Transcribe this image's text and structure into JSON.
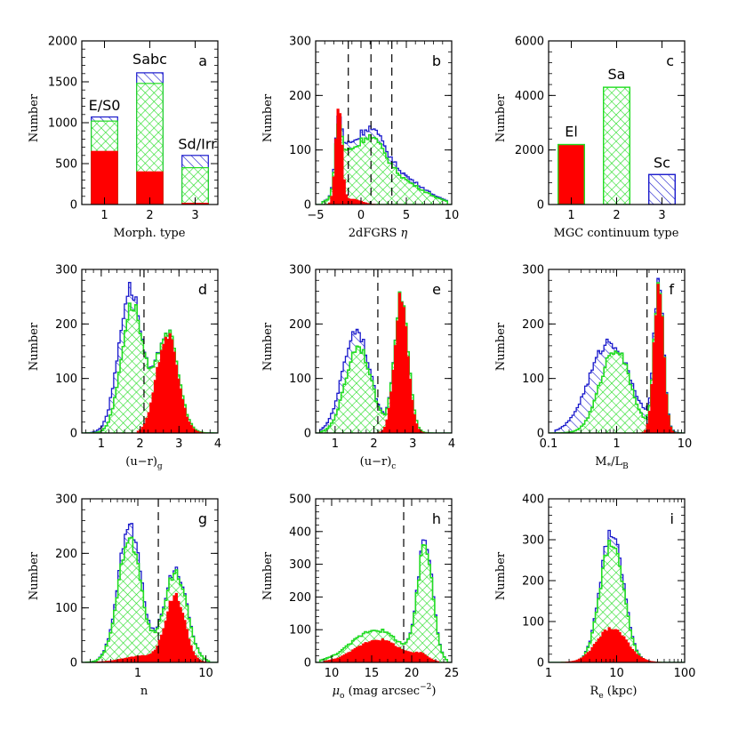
{
  "colors": {
    "red": "#ff0000",
    "green": "#22dd22",
    "blue": "#1a1acc",
    "black": "#000000"
  },
  "chart_data": [
    {
      "type": "bar",
      "letter": "a",
      "xlabel": "Morph. type",
      "ylabel": "Number",
      "xlim": [
        0.5,
        3.5
      ],
      "ylim": [
        0,
        2000
      ],
      "xscale": "linear",
      "xticks": [
        1,
        2,
        3
      ],
      "yticks": [
        0,
        500,
        1000,
        1500,
        2000
      ],
      "categories": [
        "1",
        "2",
        "3"
      ],
      "stacked_totals": [
        1070,
        1610,
        600
      ],
      "series": [
        {
          "role": "red",
          "values": [
            650,
            400,
            15
          ]
        },
        {
          "role": "green",
          "values": [
            1020,
            1480,
            450
          ]
        },
        {
          "role": "blue",
          "values": [
            1070,
            1610,
            600
          ]
        }
      ],
      "annotations": [
        {
          "text": "E/S0",
          "x": 1,
          "y": 1150
        },
        {
          "text": "Sabc",
          "x": 2,
          "y": 1720
        },
        {
          "text": "Sd/Irr",
          "x": 3.05,
          "y": 680
        }
      ]
    },
    {
      "type": "histogram",
      "letter": "b",
      "xlabel": "2dFGRS η",
      "ylabel": "Number",
      "xlim": [
        -5,
        10
      ],
      "ylim": [
        0,
        300
      ],
      "xscale": "linear",
      "xticks": [
        -5,
        0,
        5,
        10
      ],
      "yticks": [
        0,
        100,
        200,
        300
      ],
      "vlines": [
        -1.4,
        1.1,
        3.4
      ],
      "series": [
        {
          "role": "blue",
          "peaks": [
            {
              "c": -2.5,
              "w": 0.35,
              "h": 120
            },
            {
              "c": -1.6,
              "w": 0.6,
              "h": 40
            },
            {
              "c": 0.6,
              "w": 1.9,
              "h": 125
            },
            {
              "c": 4.5,
              "w": 2.6,
              "h": 45
            }
          ],
          "range": [
            -4.3,
            9.5
          ]
        },
        {
          "role": "green",
          "peaks": [
            {
              "c": -2.5,
              "w": 0.35,
              "h": 110
            },
            {
              "c": -1.6,
              "w": 0.6,
              "h": 35
            },
            {
              "c": 0.6,
              "w": 1.9,
              "h": 112
            },
            {
              "c": 4.5,
              "w": 2.6,
              "h": 38
            }
          ],
          "range": [
            -4.3,
            9.5
          ]
        },
        {
          "role": "red",
          "peaks": [
            {
              "c": -2.45,
              "w": 0.35,
              "h": 180
            },
            {
              "c": -1.0,
              "w": 1.0,
              "h": 10
            }
          ],
          "range": [
            -4.2,
            1.5
          ]
        }
      ]
    },
    {
      "type": "bar",
      "letter": "c",
      "xlabel": "MGC continuum type",
      "ylabel": "Number",
      "xlim": [
        0.5,
        3.5
      ],
      "ylim": [
        0,
        6000
      ],
      "xscale": "linear",
      "xticks": [
        1,
        2,
        3
      ],
      "yticks": [
        0,
        2000,
        4000,
        6000
      ],
      "categories": [
        "1",
        "2",
        "3"
      ],
      "series": [
        {
          "role": "red",
          "values": [
            2200,
            0,
            0
          ]
        },
        {
          "role": "green",
          "values": [
            0,
            4300,
            0
          ]
        },
        {
          "role": "blue",
          "values": [
            0,
            0,
            1100
          ]
        }
      ],
      "annotations": [
        {
          "text": "El",
          "x": 1,
          "y": 2500
        },
        {
          "text": "Sa",
          "x": 2,
          "y": 4600
        },
        {
          "text": "Sc",
          "x": 3,
          "y": 1350
        }
      ]
    },
    {
      "type": "histogram",
      "letter": "d",
      "xlabel": "(u−r)g",
      "ylabel": "Number",
      "xlim": [
        0.5,
        4
      ],
      "ylim": [
        0,
        300
      ],
      "xscale": "linear",
      "xticks": [
        1,
        2,
        3,
        4
      ],
      "yticks": [
        0,
        100,
        200,
        300
      ],
      "vlines": [
        2.1
      ],
      "series": [
        {
          "role": "blue",
          "peaks": [
            {
              "c": 1.75,
              "w": 0.3,
              "h": 265
            },
            {
              "c": 2.7,
              "w": 0.28,
              "h": 185
            }
          ],
          "range": [
            0.6,
            3.9
          ]
        },
        {
          "role": "green",
          "peaks": [
            {
              "c": 1.8,
              "w": 0.28,
              "h": 235
            },
            {
              "c": 2.7,
              "w": 0.28,
              "h": 185
            }
          ],
          "range": [
            0.6,
            3.9
          ]
        },
        {
          "role": "red",
          "peaks": [
            {
              "c": 2.7,
              "w": 0.27,
              "h": 180
            }
          ],
          "range": [
            1.9,
            3.9
          ]
        }
      ]
    },
    {
      "type": "histogram",
      "letter": "e",
      "xlabel": "(u−r)c",
      "ylabel": "Number",
      "xlim": [
        0.5,
        4
      ],
      "ylim": [
        0,
        300
      ],
      "xscale": "linear",
      "xticks": [
        1,
        2,
        3,
        4
      ],
      "yticks": [
        0,
        100,
        200,
        300
      ],
      "vlines": [
        2.1
      ],
      "series": [
        {
          "role": "blue",
          "peaks": [
            {
              "c": 1.55,
              "w": 0.35,
              "h": 190
            },
            {
              "c": 2.7,
              "w": 0.18,
              "h": 250
            }
          ],
          "range": [
            0.6,
            3.9
          ]
        },
        {
          "role": "green",
          "peaks": [
            {
              "c": 1.6,
              "w": 0.33,
              "h": 160
            },
            {
              "c": 2.7,
              "w": 0.18,
              "h": 250
            }
          ],
          "range": [
            0.6,
            3.9
          ]
        },
        {
          "role": "red",
          "peaks": [
            {
              "c": 2.7,
              "w": 0.17,
              "h": 250
            }
          ],
          "range": [
            2.0,
            3.9
          ]
        }
      ]
    },
    {
      "type": "histogram",
      "letter": "f",
      "xlabel": "M*/LB",
      "ylabel": "Number",
      "xlim": [
        0.1,
        10
      ],
      "ylim": [
        0,
        300
      ],
      "xscale": "log",
      "xticks": [
        0.1,
        1,
        10
      ],
      "xticklabels": [
        "0.1",
        "1",
        "10"
      ],
      "yticks": [
        0,
        100,
        200,
        300
      ],
      "vlines": [
        2.8
      ],
      "series": [
        {
          "role": "blue",
          "peaks": [
            {
              "c": -0.1,
              "w": 0.3,
              "h": 168
            },
            {
              "c": 0.62,
              "w": 0.07,
              "h": 270
            }
          ],
          "range": [
            -0.9,
            0.95
          ]
        },
        {
          "role": "green",
          "peaks": [
            {
              "c": -0.02,
              "w": 0.22,
              "h": 155
            },
            {
              "c": 0.62,
              "w": 0.07,
              "h": 270
            }
          ],
          "range": [
            -0.9,
            0.95
          ]
        },
        {
          "role": "red",
          "peaks": [
            {
              "c": 0.62,
              "w": 0.07,
              "h": 270
            }
          ],
          "range": [
            0.35,
            0.95
          ]
        }
      ]
    },
    {
      "type": "histogram",
      "letter": "g",
      "xlabel": "n",
      "ylabel": "Number",
      "xlim": [
        0.15,
        15
      ],
      "ylim": [
        0,
        300
      ],
      "xscale": "log",
      "xticks": [
        1,
        10
      ],
      "xticklabels": [
        "1",
        "10"
      ],
      "yticks": [
        0,
        100,
        200,
        300
      ],
      "vlines": [
        2.0
      ],
      "series": [
        {
          "role": "blue",
          "peaks": [
            {
              "c": -0.12,
              "w": 0.17,
              "h": 250
            },
            {
              "c": 0.55,
              "w": 0.17,
              "h": 170
            }
          ],
          "range": [
            -0.75,
            1.05
          ]
        },
        {
          "role": "green",
          "peaks": [
            {
              "c": -0.12,
              "w": 0.17,
              "h": 225
            },
            {
              "c": 0.55,
              "w": 0.17,
              "h": 165
            }
          ],
          "range": [
            -0.75,
            1.05
          ]
        },
        {
          "role": "red",
          "peaks": [
            {
              "c": 0.55,
              "w": 0.14,
              "h": 120
            },
            {
              "c": 0.1,
              "w": 0.3,
              "h": 12
            }
          ],
          "range": [
            -0.6,
            1.0
          ]
        }
      ]
    },
    {
      "type": "histogram",
      "letter": "h",
      "xlabel": "μo (mag arcsec⁻²)",
      "ylabel": "Number",
      "xlim": [
        8,
        25
      ],
      "ylim": [
        0,
        500
      ],
      "xscale": "linear",
      "xticks": [
        10,
        15,
        20,
        25
      ],
      "yticks": [
        0,
        100,
        200,
        300,
        400,
        500
      ],
      "vlines": [
        19.0
      ],
      "series": [
        {
          "role": "blue",
          "peaks": [
            {
              "c": 15.5,
              "w": 3.0,
              "h": 100
            },
            {
              "c": 21.7,
              "w": 0.95,
              "h": 360
            }
          ],
          "range": [
            8.5,
            24.5
          ]
        },
        {
          "role": "green",
          "peaks": [
            {
              "c": 15.5,
              "w": 3.0,
              "h": 100
            },
            {
              "c": 21.7,
              "w": 0.95,
              "h": 345
            }
          ],
          "range": [
            8.5,
            24.5
          ]
        },
        {
          "role": "red",
          "peaks": [
            {
              "c": 15.8,
              "w": 2.8,
              "h": 70
            },
            {
              "c": 21.2,
              "w": 0.9,
              "h": 18
            }
          ],
          "range": [
            9.0,
            23.5
          ]
        }
      ]
    },
    {
      "type": "histogram",
      "letter": "i",
      "xlabel": "Re (kpc)",
      "ylabel": "Number",
      "xlim": [
        1,
        100
      ],
      "ylim": [
        0,
        400
      ],
      "xscale": "log",
      "xticks": [
        1,
        10,
        100
      ],
      "xticklabels": [
        "1",
        "10",
        "100"
      ],
      "yticks": [
        0,
        100,
        200,
        300,
        400
      ],
      "vlines": [],
      "series": [
        {
          "role": "blue",
          "peaks": [
            {
              "c": 0.93,
              "w": 0.17,
              "h": 325
            }
          ],
          "range": [
            0.15,
            1.75
          ]
        },
        {
          "role": "green",
          "peaks": [
            {
              "c": 0.93,
              "w": 0.17,
              "h": 300
            }
          ],
          "range": [
            0.15,
            1.75
          ]
        },
        {
          "role": "red",
          "peaks": [
            {
              "c": 0.93,
              "w": 0.22,
              "h": 85
            }
          ],
          "range": [
            0.15,
            1.7
          ]
        }
      ]
    }
  ],
  "labels": {
    "ytitle": "Number",
    "a": {
      "x": "Morph. type",
      "letter": "a",
      "ann1": "E/S0",
      "ann2": "Sabc",
      "ann3": "Sd/Irr"
    },
    "b": {
      "x": "2dFGRS",
      "eta": "η",
      "letter": "b"
    },
    "c": {
      "x": "MGC continuum type",
      "letter": "c",
      "ann1": "El",
      "ann2": "Sa",
      "ann3": "Sc"
    },
    "d": {
      "x": "(u−r)",
      "sub": "g",
      "letter": "d"
    },
    "e": {
      "x": "(u−r)",
      "sub": "c",
      "letter": "e"
    },
    "f": {
      "x1": "M",
      "sub1": "*",
      "x2": "/L",
      "sub2": "B",
      "letter": "f"
    },
    "g": {
      "x": "n",
      "letter": "g"
    },
    "h": {
      "mu": "μ",
      "sub": "o",
      "x": " (mag arcsec",
      "sup": "−2",
      "close": ")",
      "letter": "h"
    },
    "i": {
      "x1": "R",
      "sub": "e",
      "x2": " (kpc)",
      "letter": "i"
    }
  }
}
